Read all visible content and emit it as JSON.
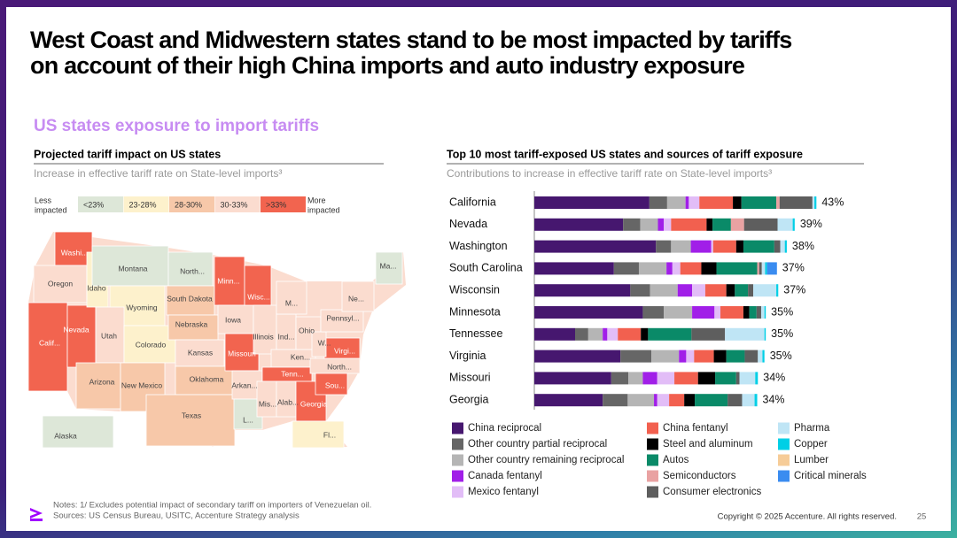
{
  "title": [
    "West Coast and Midwestern states stand to be most impacted by tariffs",
    "on account of their high China imports and auto industry exposure"
  ],
  "section_title": "US states exposure to import tariffs",
  "map": {
    "title": "Projected tariff impact on US states",
    "subtitle": "Increase in effective tariff rate on State-level imports³",
    "legend_low": [
      "Less",
      "impacted"
    ],
    "legend_high": [
      "More",
      "impacted"
    ],
    "bins": [
      {
        "label": "<23%",
        "color": "#dde7d8"
      },
      {
        "label": "23-28%",
        "color": "#fdf1cc"
      },
      {
        "label": "28-30%",
        "color": "#f7c8a9"
      },
      {
        "label": "30-33%",
        "color": "#fbdccf"
      },
      {
        "label": ">33%",
        "color": "#f2644f"
      }
    ],
    "states": [
      {
        "label": "Washi...",
        "bin": 4
      },
      {
        "label": "Oregon",
        "bin": 3
      },
      {
        "label": "Calif...",
        "bin": 4
      },
      {
        "label": "Nevada",
        "bin": 4
      },
      {
        "label": "Idaho",
        "bin": 1
      },
      {
        "label": "Montana",
        "bin": 0
      },
      {
        "label": "Wyoming",
        "bin": 1
      },
      {
        "label": "Utah",
        "bin": 3
      },
      {
        "label": "Colorado",
        "bin": 1
      },
      {
        "label": "Arizona",
        "bin": 2
      },
      {
        "label": "New Mexico",
        "bin": 2
      },
      {
        "label": "North...",
        "bin": 0
      },
      {
        "label": "South Dakota",
        "bin": 2
      },
      {
        "label": "Nebraska",
        "bin": 2
      },
      {
        "label": "Kansas",
        "bin": 3
      },
      {
        "label": "Oklahoma",
        "bin": 2
      },
      {
        "label": "Texas",
        "bin": 2
      },
      {
        "label": "Minn...",
        "bin": 4
      },
      {
        "label": "Iowa",
        "bin": 3
      },
      {
        "label": "Missouri",
        "bin": 4
      },
      {
        "label": "Arkan...",
        "bin": 3
      },
      {
        "label": "L...",
        "bin": 0
      },
      {
        "label": "Wisc...",
        "bin": 4
      },
      {
        "label": "Illinois",
        "bin": 3
      },
      {
        "label": "Ind...",
        "bin": 3
      },
      {
        "label": "M...",
        "bin": 3
      },
      {
        "label": "Ohio",
        "bin": 3
      },
      {
        "label": "Ken...",
        "bin": 3
      },
      {
        "label": "Tenn...",
        "bin": 4
      },
      {
        "label": "Mis...",
        "bin": 3
      },
      {
        "label": "Alab...",
        "bin": 3
      },
      {
        "label": "Georgia",
        "bin": 4
      },
      {
        "label": "Fl...",
        "bin": 1
      },
      {
        "label": "Sou...",
        "bin": 4
      },
      {
        "label": "North...",
        "bin": 3
      },
      {
        "label": "Virgi...",
        "bin": 4
      },
      {
        "label": "W...",
        "bin": 3
      },
      {
        "label": "Pennsyl...",
        "bin": 3
      },
      {
        "label": "Ne...",
        "bin": 3
      },
      {
        "label": "Ma...",
        "bin": 0
      },
      {
        "label": "Alaska",
        "bin": 0
      }
    ]
  },
  "chart_data": {
    "type": "bar",
    "orientation": "horizontal",
    "stacked": true,
    "title": "Top 10 most tariff-exposed US states and sources of tariff exposure",
    "subtitle": "Contributions to increase in effective tariff rate on State-level imports³",
    "categories": [
      "California",
      "Nevada",
      "Washington",
      "South Carolina",
      "Wisconsin",
      "Minnesota",
      "Tennessee",
      "Virginia",
      "Missouri",
      "Georgia"
    ],
    "series": [
      {
        "name": "China reciprocal",
        "color": "#46176f",
        "values": [
          17.5,
          13.5,
          18.5,
          12.1,
          14.6,
          16.5,
          6.2,
          13.1,
          11.7,
          10.4
        ]
      },
      {
        "name": "Other country partial reciprocal",
        "color": "#666666",
        "values": [
          2.7,
          2.6,
          2.3,
          3.8,
          3.0,
          3.2,
          2.0,
          4.7,
          2.6,
          3.8
        ]
      },
      {
        "name": "Other country remaining reciprocal",
        "color": "#b5b5b5",
        "values": [
          2.8,
          2.7,
          3.0,
          4.2,
          4.2,
          4.3,
          2.2,
          4.2,
          2.2,
          4.0
        ]
      },
      {
        "name": "Canada fentanyl",
        "color": "#a11fe8",
        "values": [
          0.5,
          0.9,
          3.1,
          0.9,
          2.2,
          3.4,
          0.7,
          1.1,
          2.2,
          0.5
        ]
      },
      {
        "name": "Mexico fentanyl",
        "color": "#e2bdf7",
        "values": [
          1.6,
          1.1,
          0.3,
          1.2,
          2.0,
          0.9,
          1.6,
          1.2,
          2.6,
          1.8
        ]
      },
      {
        "name": "China fentanyl",
        "color": "#f2604f",
        "values": [
          5.1,
          5.4,
          3.5,
          3.2,
          3.2,
          3.5,
          3.5,
          3.0,
          3.6,
          2.3
        ]
      },
      {
        "name": "Steel and aluminum",
        "color": "#000000",
        "values": [
          1.3,
          0.9,
          1.1,
          2.3,
          1.3,
          0.9,
          1.1,
          1.9,
          2.6,
          1.6
        ]
      },
      {
        "name": "Autos",
        "color": "#0a8a68",
        "values": [
          5.3,
          2.8,
          4.7,
          6.2,
          2.0,
          1.1,
          6.6,
          2.8,
          3.2,
          5.0
        ]
      },
      {
        "name": "Semiconductors",
        "color": "#e9a2a2",
        "values": [
          0.5,
          2.0,
          0,
          0.3,
          0,
          0,
          0,
          0,
          0,
          0
        ]
      },
      {
        "name": "Consumer electronics",
        "color": "#5e5e5e",
        "values": [
          5.0,
          5.1,
          0.9,
          0.4,
          0.8,
          0.7,
          5.1,
          2.0,
          0.5,
          2.2
        ]
      },
      {
        "name": "Pharma",
        "color": "#bfe5f5",
        "values": [
          0.3,
          2.3,
          0.7,
          0.5,
          3.5,
          0.5,
          6.0,
          0.7,
          2.4,
          1.9
        ]
      },
      {
        "name": "Copper",
        "color": "#00cfe6",
        "values": [
          0.3,
          0.3,
          0.3,
          0.3,
          0.3,
          0.2,
          0.2,
          0.3,
          0.4,
          0.4
        ]
      },
      {
        "name": "Lumber",
        "color": "#f6cc98",
        "values": [
          0,
          0,
          0,
          0,
          0,
          0,
          0,
          0,
          0,
          0
        ]
      },
      {
        "name": "Critical minerals",
        "color": "#3a8cf0",
        "values": [
          0,
          0,
          0,
          1.5,
          0,
          0,
          0,
          0,
          0,
          0
        ]
      }
    ],
    "totals": [
      43,
      39,
      38,
      37,
      37,
      35,
      35,
      35,
      34,
      34
    ],
    "total_labels": [
      "43%",
      "39%",
      "38%",
      "37%",
      "37%",
      "35%",
      "35%",
      "35%",
      "34%",
      "34%"
    ]
  },
  "notes": [
    "Notes: 1/ Excludes potential impact of secondary tariff on importers of Venezuelan oil.",
    "Sources: US Census Bureau, USITC, Accenture Strategy analysis"
  ],
  "copyright": "Copyright © 2025 Accenture. All rights reserved.",
  "page": "25"
}
